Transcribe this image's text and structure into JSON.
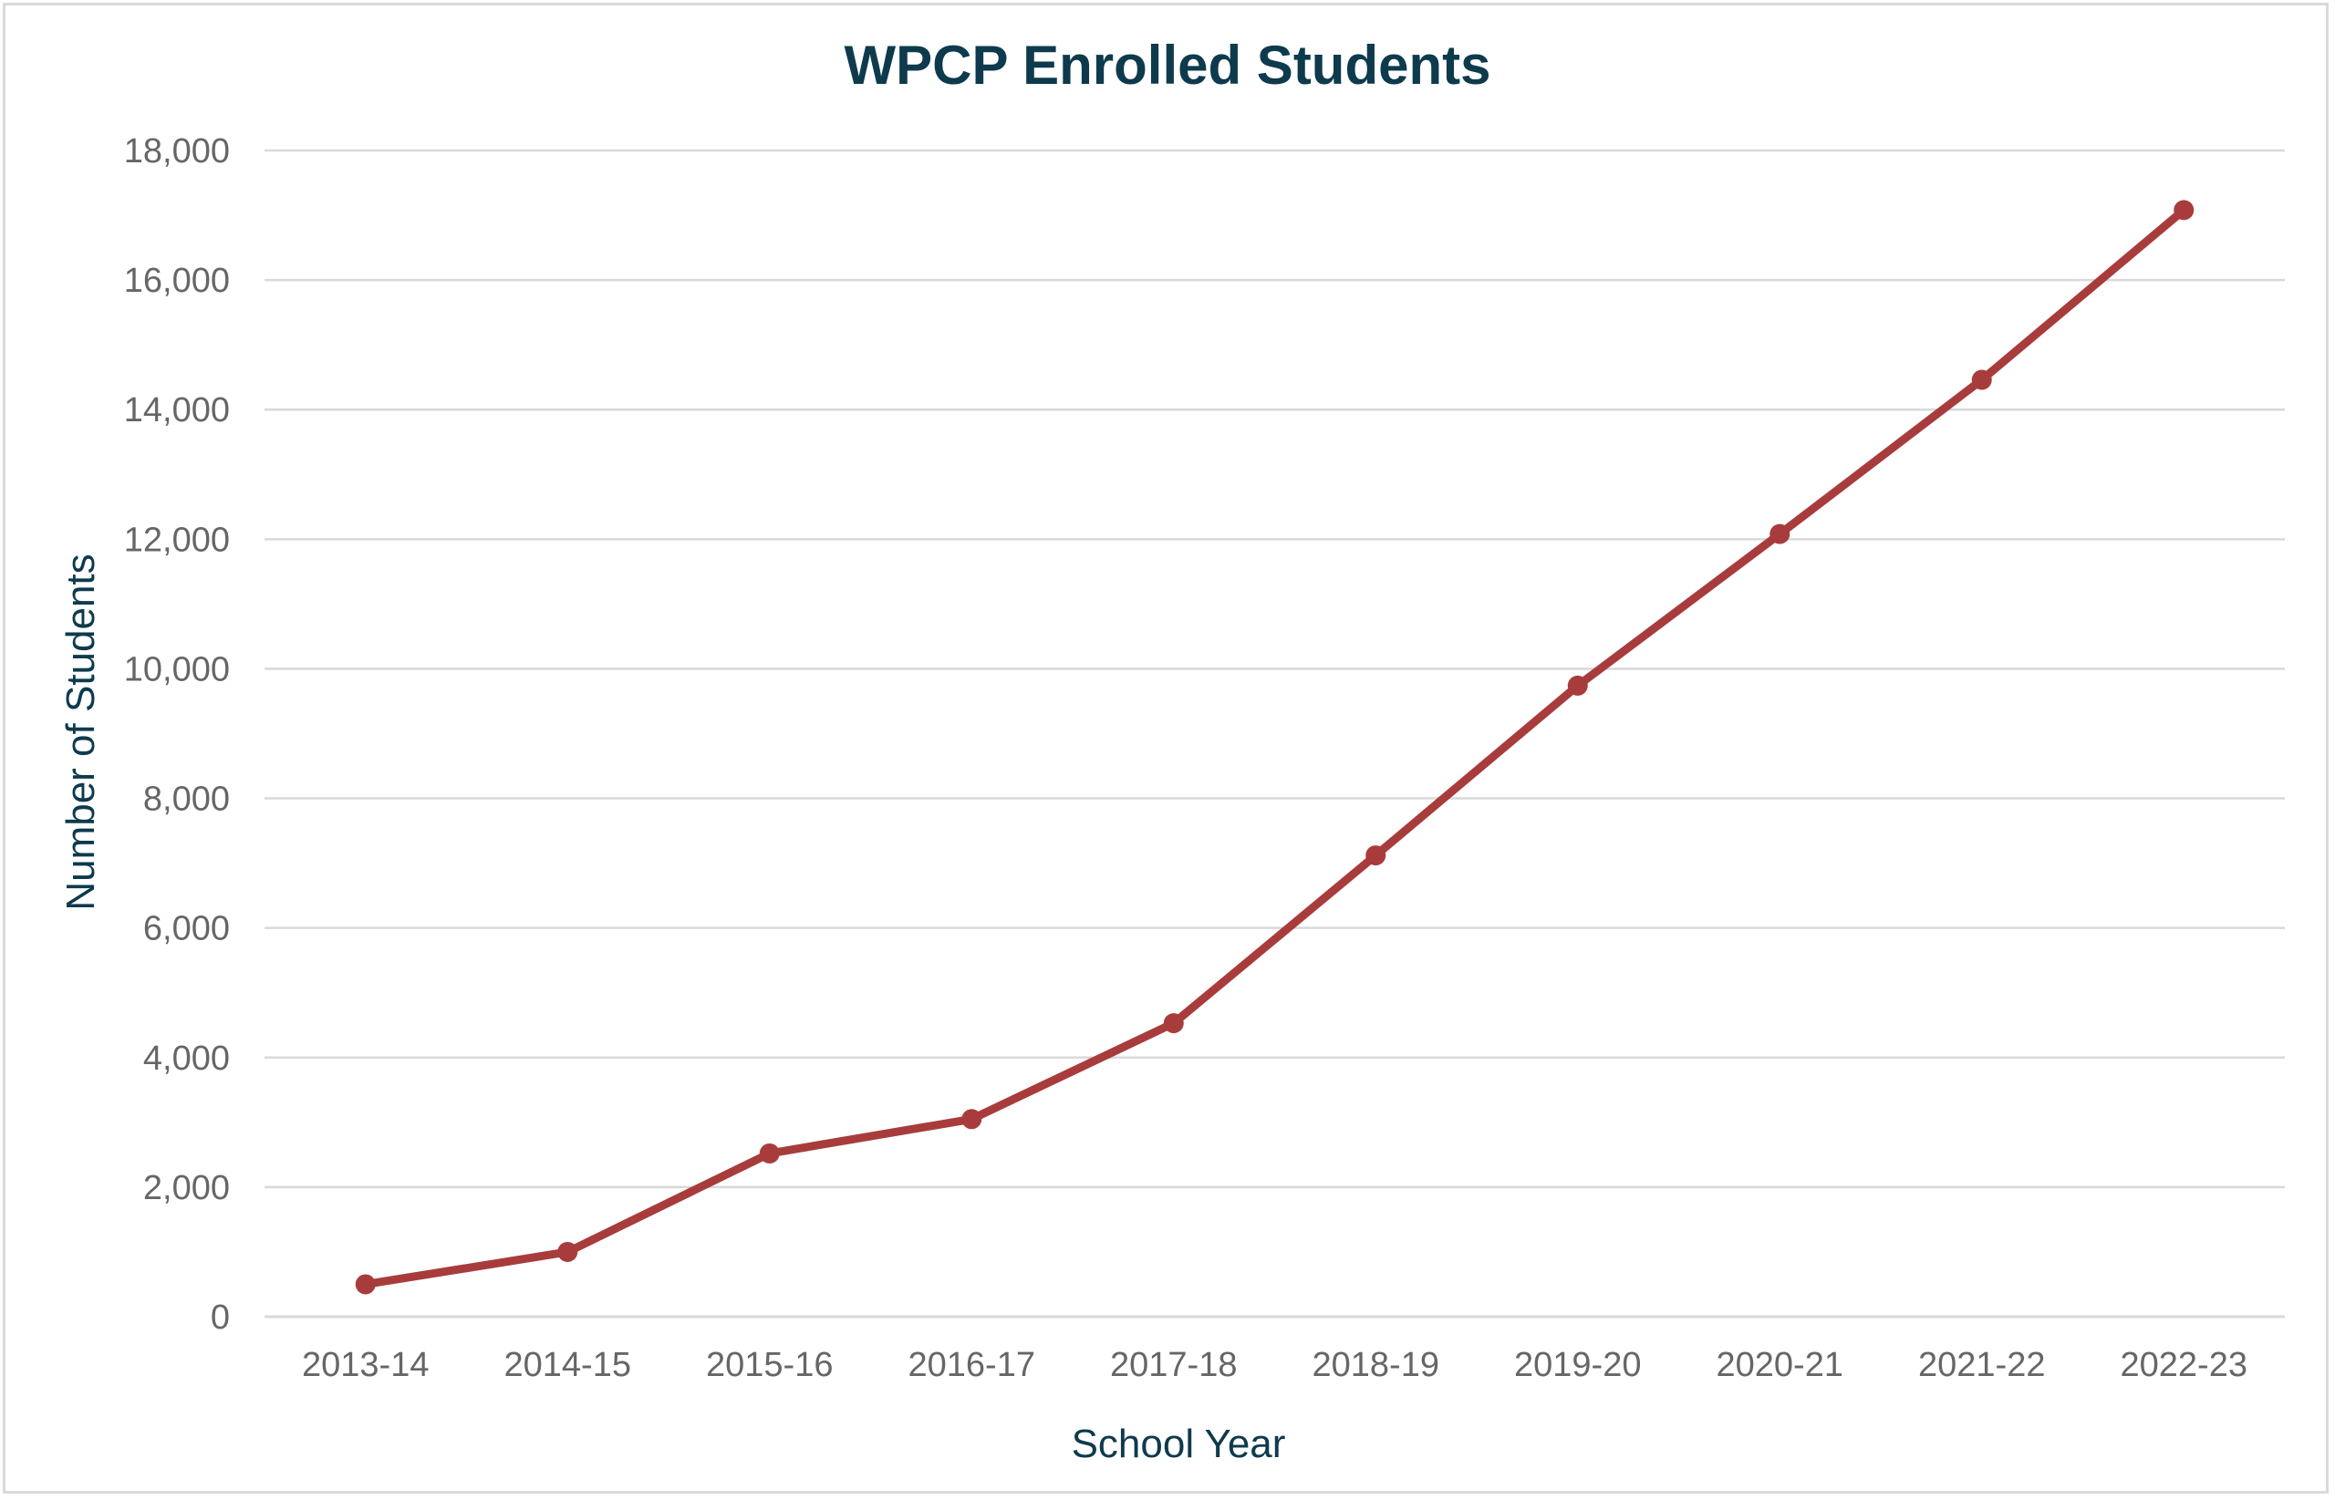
{
  "chart_data": {
    "type": "line",
    "title": "WPCP Enrolled Students",
    "xlabel": "School Year",
    "ylabel": "Number of Students",
    "categories": [
      "2013-14",
      "2014-15",
      "2015-16",
      "2016-17",
      "2017-18",
      "2018-19",
      "2019-20",
      "2020-21",
      "2021-22",
      "2022-23"
    ],
    "series": [
      {
        "values": [
          500,
          1000,
          2520,
          3050,
          4530,
          7120,
          9740,
          12080,
          14460,
          17080
        ],
        "color": "#a83c3c"
      }
    ],
    "ylim": [
      0,
      18000
    ],
    "yticks": [
      0,
      2000,
      4000,
      6000,
      8000,
      10000,
      12000,
      14000,
      16000,
      18000
    ],
    "ytick_labels": [
      "0",
      "2,000",
      "4,000",
      "6,000",
      "8,000",
      "10,000",
      "12,000",
      "14,000",
      "16,000",
      "18,000"
    ],
    "grid": true,
    "legend": "none",
    "markers": true
  }
}
